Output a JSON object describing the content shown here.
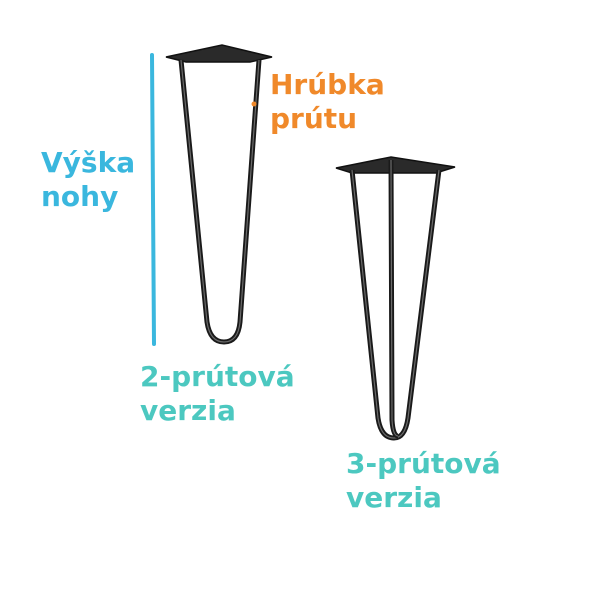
{
  "colors": {
    "height_label": "#3ab7de",
    "thickness_label": "#f0892a",
    "version_label": "#4cc8c0",
    "leg_stroke": "#1a1a1a",
    "height_line": "#3ab7de"
  },
  "labels": {
    "height": {
      "line1": "Výška",
      "line2": "nohy"
    },
    "thickness": {
      "line1": "Hrúbka",
      "line2": "prútu"
    },
    "two_rod": {
      "line1": "2-prútová",
      "line2": "verzia"
    },
    "three_rod": {
      "line1": "3-prútová",
      "line2": "verzia"
    }
  }
}
